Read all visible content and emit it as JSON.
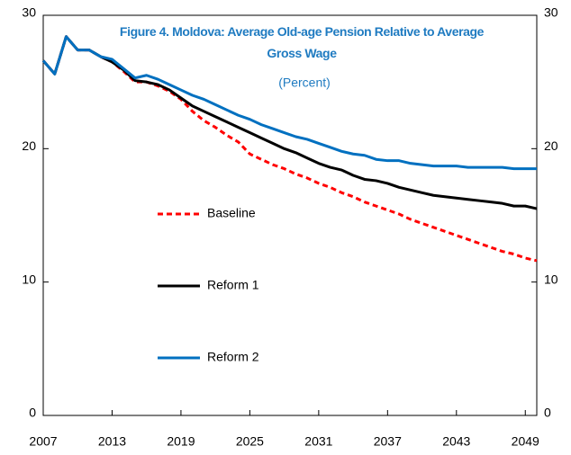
{
  "chart_data": {
    "type": "line",
    "title": "Figure 4. Moldova: Average Old-age Pension Relative to Average Gross Wage",
    "subtitle": "(Percent)",
    "x": [
      2007,
      2008,
      2009,
      2010,
      2011,
      2012,
      2013,
      2014,
      2015,
      2016,
      2017,
      2018,
      2019,
      2020,
      2021,
      2022,
      2023,
      2024,
      2025,
      2026,
      2027,
      2028,
      2029,
      2030,
      2031,
      2032,
      2033,
      2034,
      2035,
      2036,
      2037,
      2038,
      2039,
      2040,
      2041,
      2042,
      2043,
      2044,
      2045,
      2046,
      2047,
      2048,
      2049,
      2050
    ],
    "xlim": [
      2007,
      2050
    ],
    "xticks": [
      2007,
      2013,
      2019,
      2025,
      2031,
      2037,
      2043,
      2049
    ],
    "ylim": [
      0,
      30
    ],
    "yticks": [
      0,
      10,
      20,
      30
    ],
    "y2lim": [
      0,
      30
    ],
    "y2ticks": [
      0,
      10,
      20,
      30
    ],
    "series": [
      {
        "name": "Baseline",
        "color": "#ff0000",
        "dashed": true,
        "values": [
          26.6,
          25.6,
          28.4,
          27.4,
          27.4,
          26.9,
          26.5,
          25.8,
          25.0,
          25.0,
          24.7,
          24.3,
          23.7,
          22.8,
          22.1,
          21.6,
          21.0,
          20.5,
          19.6,
          19.2,
          18.8,
          18.5,
          18.1,
          17.8,
          17.4,
          17.1,
          16.7,
          16.4,
          16.0,
          15.7,
          15.4,
          15.1,
          14.7,
          14.4,
          14.1,
          13.8,
          13.5,
          13.2,
          12.9,
          12.6,
          12.3,
          12.1,
          11.8,
          11.6
        ]
      },
      {
        "name": "Reform 1",
        "color": "#000000",
        "dashed": false,
        "values": [
          26.6,
          25.6,
          28.4,
          27.4,
          27.4,
          26.9,
          26.5,
          25.9,
          25.1,
          25.0,
          24.8,
          24.4,
          23.8,
          23.2,
          22.8,
          22.4,
          22.0,
          21.6,
          21.2,
          20.8,
          20.4,
          20.0,
          19.7,
          19.3,
          18.9,
          18.6,
          18.4,
          18.0,
          17.7,
          17.6,
          17.4,
          17.1,
          16.9,
          16.7,
          16.5,
          16.4,
          16.3,
          16.2,
          16.1,
          16.0,
          15.9,
          15.7,
          15.7,
          15.5
        ]
      },
      {
        "name": "Reform 2",
        "color": "#0070c0",
        "dashed": false,
        "values": [
          26.6,
          25.6,
          28.4,
          27.4,
          27.4,
          26.9,
          26.7,
          26.0,
          25.3,
          25.5,
          25.2,
          24.8,
          24.4,
          24.0,
          23.7,
          23.3,
          22.9,
          22.5,
          22.2,
          21.8,
          21.5,
          21.2,
          20.9,
          20.7,
          20.4,
          20.1,
          19.8,
          19.6,
          19.5,
          19.2,
          19.1,
          19.1,
          18.9,
          18.8,
          18.7,
          18.7,
          18.7,
          18.6,
          18.6,
          18.6,
          18.6,
          18.5,
          18.5,
          18.5
        ]
      }
    ]
  }
}
